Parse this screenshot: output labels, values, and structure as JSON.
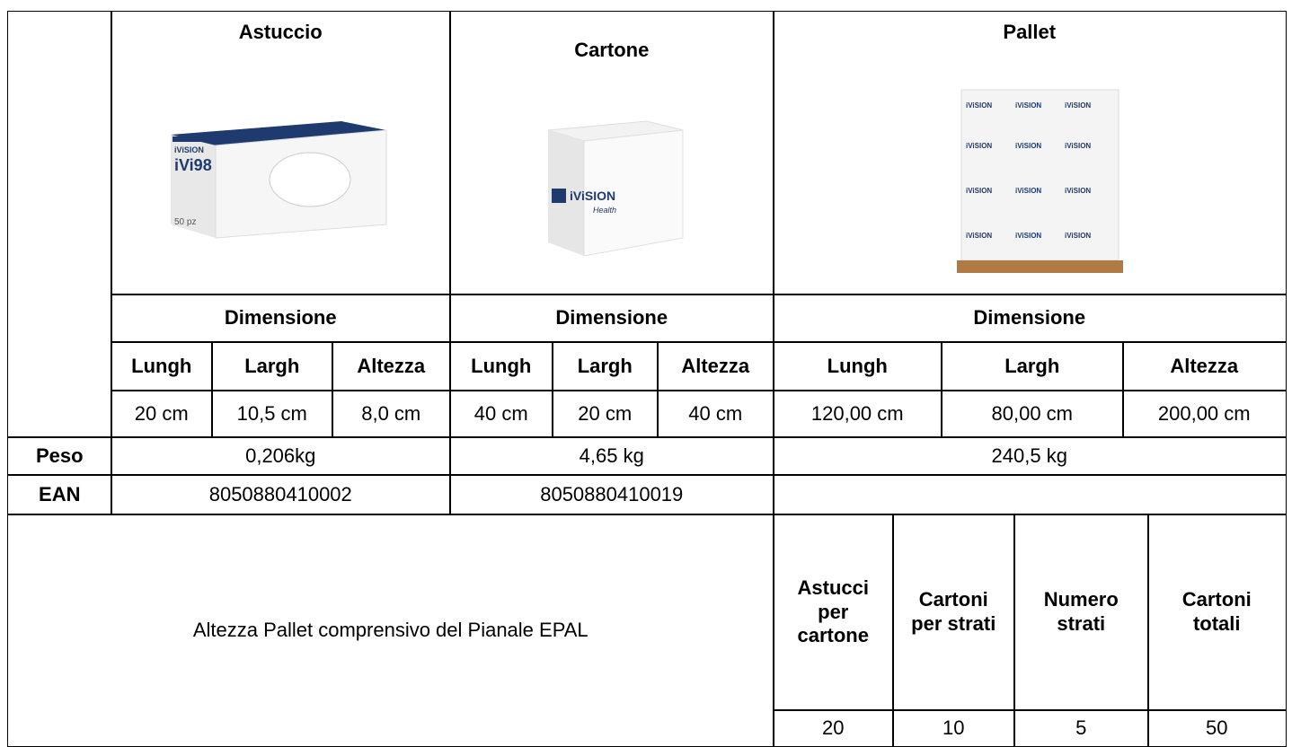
{
  "table": {
    "header": [
      "Astuccio",
      "Cartone",
      "Pallet"
    ],
    "dimension_label": [
      "Dimensione",
      "Dimensione",
      "Dimensione"
    ],
    "dimension_headers": [
      "Lungh",
      "Largh",
      "Altezza",
      "Lungh",
      "Largh",
      "Altezza",
      "Lungh",
      "Largh",
      "Altezza"
    ],
    "dimension_values": [
      "20 cm",
      "10,5 cm",
      "8,0 cm",
      "40 cm",
      "20 cm",
      "40 cm",
      "120,00 cm",
      "80,00 cm",
      "200,00 cm"
    ],
    "weight": {
      "label": "Peso",
      "values": [
        "0,206kg",
        "4,65 kg",
        "240,5 kg"
      ]
    },
    "ean": {
      "label": "EAN",
      "values": [
        "8050880410002",
        "8050880410019"
      ]
    },
    "note": "Altezza Pallet comprensivo del Pianale EPAL",
    "pallet_headers": [
      "Astucci per cartone",
      "Cartoni per strati",
      "Numero strati",
      "Cartoni totali"
    ],
    "pallet_values": [
      "20",
      "10",
      "5",
      "50"
    ]
  },
  "images": {
    "astuccio": {
      "brand": "iViSION",
      "product": "iVi98",
      "count": "50 pz"
    },
    "cartone": {
      "brand": "iViSION",
      "tagline": "Health"
    },
    "pallet": {
      "brand": "iViSION"
    }
  }
}
